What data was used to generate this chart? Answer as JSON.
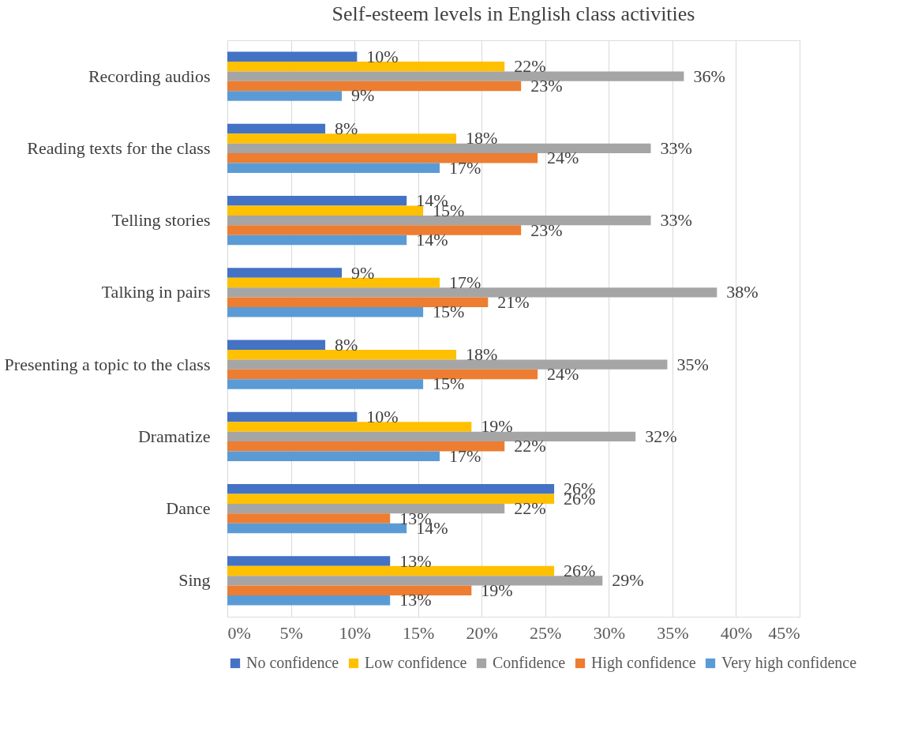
{
  "chart_data": {
    "type": "bar",
    "orientation": "horizontal",
    "title": "Self-esteem levels in English class activities",
    "categories": [
      "Recording audios",
      "Reading texts for the class",
      "Telling stories",
      "Talking in pairs",
      "Presenting a topic to the class",
      "Dramatize",
      "Dance",
      "Sing"
    ],
    "series": [
      {
        "name": "No confidence",
        "color": "#4472c4",
        "values": [
          10.2,
          7.7,
          14.1,
          9.0,
          7.7,
          10.2,
          25.7,
          12.8
        ],
        "value_labels": [
          "10%",
          "8%",
          "14%",
          "9%",
          "8%",
          "10%",
          "26%",
          "13%"
        ]
      },
      {
        "name": "Low confidence",
        "color": "#ffc000",
        "values": [
          21.8,
          18.0,
          15.4,
          16.7,
          18.0,
          19.2,
          25.7,
          25.7
        ],
        "value_labels": [
          "22%",
          "18%",
          "15%",
          "17%",
          "18%",
          "19%",
          "26%",
          "26%"
        ]
      },
      {
        "name": "Confidence",
        "color": "#a5a5a5",
        "values": [
          35.9,
          33.3,
          33.3,
          38.5,
          34.6,
          32.1,
          21.8,
          29.5
        ],
        "value_labels": [
          "36%",
          "33%",
          "33%",
          "38%",
          "35%",
          "32%",
          "22%",
          "29%"
        ]
      },
      {
        "name": "High confidence",
        "color": "#ed7d31",
        "values": [
          23.1,
          24.4,
          23.1,
          20.5,
          24.4,
          21.8,
          12.8,
          19.2
        ],
        "value_labels": [
          "23%",
          "24%",
          "23%",
          "21%",
          "24%",
          "22%",
          "13%",
          "19%"
        ]
      },
      {
        "name": "Very high confidence",
        "color": "#5b9bd5",
        "values": [
          9.0,
          16.7,
          14.1,
          15.4,
          15.4,
          16.7,
          14.1,
          12.8
        ],
        "value_labels": [
          "9%",
          "17%",
          "14%",
          "15%",
          "15%",
          "17%",
          "14%",
          "13%"
        ]
      }
    ],
    "xlim": [
      0,
      45
    ],
    "xticks": [
      {
        "value": 0,
        "label": "0%"
      },
      {
        "value": 5,
        "label": "5%"
      },
      {
        "value": 10,
        "label": "10%"
      },
      {
        "value": 15,
        "label": "15%"
      },
      {
        "value": 20,
        "label": "20%"
      },
      {
        "value": 25,
        "label": "25%"
      },
      {
        "value": 30,
        "label": "30%"
      },
      {
        "value": 35,
        "label": "35%"
      },
      {
        "value": 40,
        "label": "40%"
      },
      {
        "value": 45,
        "label": "45%"
      }
    ],
    "grid": "x",
    "legend": "bottom"
  }
}
